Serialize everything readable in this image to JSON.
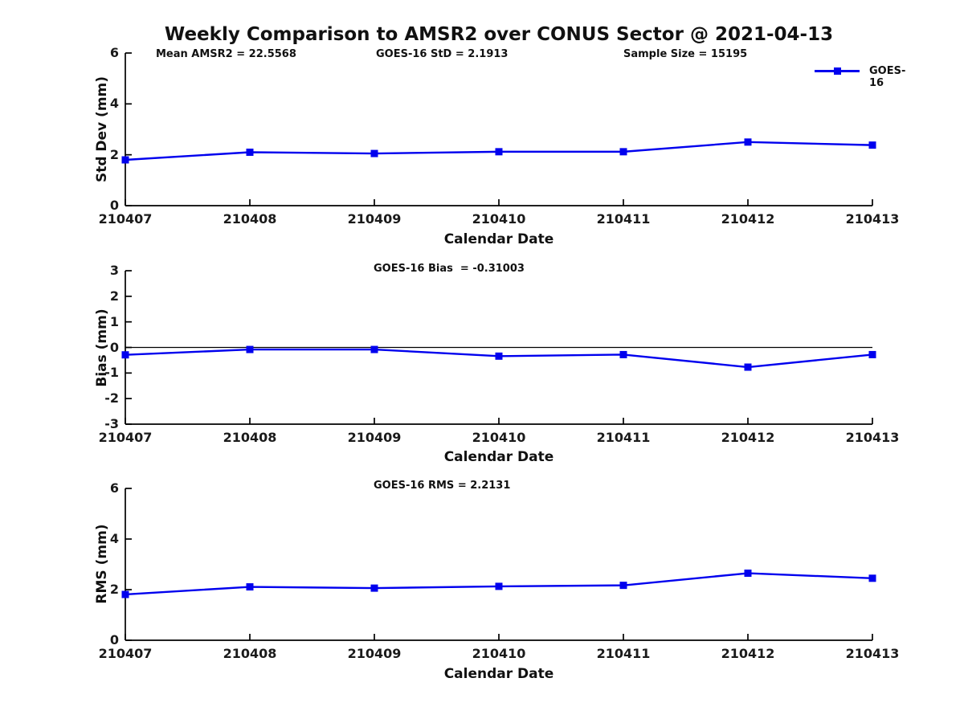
{
  "title": "Weekly Comparison to AMSR2 over CONUS Sector @ 2021-04-13",
  "legend": {
    "label": "GOES-16"
  },
  "colors": {
    "line": "#0000ee",
    "axis": "#000000",
    "zero_line": "#000000",
    "text": "#111111"
  },
  "chart_data": [
    {
      "type": "line",
      "id": "stddev",
      "series": [
        {
          "name": "GOES-16",
          "values": [
            1.8,
            2.1,
            2.05,
            2.12,
            2.12,
            2.5,
            2.38
          ]
        }
      ],
      "categories": [
        "210407",
        "210408",
        "210409",
        "210410",
        "210411",
        "210412",
        "210413"
      ],
      "xlabel": "Calendar Date",
      "ylabel": "Std Dev (mm)",
      "ylim": [
        0,
        6
      ],
      "yticks": [
        0,
        2,
        4,
        6
      ],
      "grid": false,
      "zero_line": false,
      "legend_position": "top-right",
      "annotations": [
        "Mean AMSR2 = 22.5568",
        "GOES-16 StD = 2.1913",
        "Sample Size = 15195"
      ]
    },
    {
      "type": "line",
      "id": "bias",
      "series": [
        {
          "name": "GOES-16",
          "values": [
            -0.29,
            -0.08,
            -0.08,
            -0.34,
            -0.28,
            -0.77,
            -0.28
          ]
        }
      ],
      "categories": [
        "210407",
        "210408",
        "210409",
        "210410",
        "210411",
        "210412",
        "210413"
      ],
      "xlabel": "Calendar Date",
      "ylabel": "Bias (mm)",
      "ylim": [
        -3,
        3
      ],
      "yticks": [
        -3,
        -2,
        -1,
        0,
        1,
        2,
        3
      ],
      "grid": false,
      "zero_line": true,
      "annotations": [
        "GOES-16 Bias  = -0.31003"
      ]
    },
    {
      "type": "line",
      "id": "rms",
      "series": [
        {
          "name": "GOES-16",
          "values": [
            1.81,
            2.11,
            2.06,
            2.13,
            2.17,
            2.65,
            2.45
          ]
        }
      ],
      "categories": [
        "210407",
        "210408",
        "210409",
        "210410",
        "210411",
        "210412",
        "210413"
      ],
      "xlabel": "Calendar Date",
      "ylabel": "RMS (mm)",
      "ylim": [
        0,
        6
      ],
      "yticks": [
        0,
        2,
        4,
        6
      ],
      "grid": false,
      "zero_line": false,
      "annotations": [
        "GOES-16 RMS = 2.2131"
      ]
    }
  ]
}
